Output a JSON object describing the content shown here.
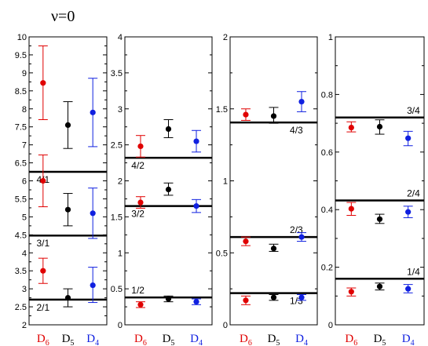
{
  "title": "ν=0",
  "colors": {
    "D6": "#e00000",
    "D5": "#000000",
    "D4": "#1020e0"
  },
  "chart_data": [
    {
      "type": "scatter",
      "ylim": [
        2,
        10
      ],
      "yticks": [
        "2",
        "2.5",
        "3",
        "3.5",
        "4",
        "4.5",
        "5",
        "5.5",
        "6",
        "6.5",
        "7",
        "7.5",
        "8",
        "8.5",
        "9",
        "9.5",
        "10"
      ],
      "categories": [
        {
          "main": "D",
          "sub": "6",
          "color": "D6"
        },
        {
          "main": "D",
          "sub": "5",
          "color": "D5"
        },
        {
          "main": "D",
          "sub": "4",
          "color": "D4"
        }
      ],
      "hlines": [
        {
          "y": 6.25,
          "label": "4/1",
          "labelX": 0.18,
          "labelSide": "below"
        },
        {
          "y": 4.48,
          "label": "3/1",
          "labelX": 0.18,
          "labelSide": "below"
        },
        {
          "y": 2.7,
          "label": "2/1",
          "labelX": 0.18,
          "labelSide": "below"
        }
      ],
      "series": [
        {
          "color": "D6",
          "points": [
            {
              "y": 8.72,
              "lo": 7.7,
              "hi": 9.75
            },
            {
              "y": 6.0,
              "lo": 5.28,
              "hi": 6.72
            },
            {
              "y": 3.5,
              "lo": 3.15,
              "hi": 3.85
            }
          ]
        },
        {
          "color": "D5",
          "points": [
            {
              "y": 7.55,
              "lo": 6.9,
              "hi": 8.2
            },
            {
              "y": 5.2,
              "lo": 4.75,
              "hi": 5.65
            },
            {
              "y": 2.75,
              "lo": 2.5,
              "hi": 3.0
            }
          ]
        },
        {
          "color": "D4",
          "points": [
            {
              "y": 7.9,
              "lo": 6.95,
              "hi": 8.85
            },
            {
              "y": 5.1,
              "lo": 4.4,
              "hi": 5.8
            },
            {
              "y": 3.1,
              "lo": 2.62,
              "hi": 3.6
            }
          ]
        }
      ]
    },
    {
      "type": "scatter",
      "ylim": [
        0,
        4
      ],
      "yticks": [
        "0",
        "0.5",
        "1",
        "1.5",
        "2",
        "2.5",
        "3",
        "3.5",
        "4"
      ],
      "categories": [
        {
          "main": "D",
          "sub": "6",
          "color": "D6"
        },
        {
          "main": "D",
          "sub": "5",
          "color": "D5"
        },
        {
          "main": "D",
          "sub": "4",
          "color": "D4"
        }
      ],
      "hlines": [
        {
          "y": 2.32,
          "label": "4/2",
          "labelX": 0.15,
          "labelSide": "below"
        },
        {
          "y": 1.65,
          "label": "3/2",
          "labelX": 0.15,
          "labelSide": "below"
        },
        {
          "y": 0.38,
          "label": "1/2",
          "labelX": 0.15,
          "labelSide": "above"
        }
      ],
      "series": [
        {
          "color": "D6",
          "points": [
            {
              "y": 2.48,
              "lo": 2.33,
              "hi": 2.63
            },
            {
              "y": 1.7,
              "lo": 1.62,
              "hi": 1.78
            },
            {
              "y": 0.28,
              "lo": 0.24,
              "hi": 0.32
            }
          ]
        },
        {
          "color": "D5",
          "points": [
            {
              "y": 2.72,
              "lo": 2.6,
              "hi": 2.85
            },
            {
              "y": 1.88,
              "lo": 1.8,
              "hi": 1.97
            },
            {
              "y": 0.36,
              "lo": 0.32,
              "hi": 0.4
            }
          ]
        },
        {
          "color": "D4",
          "points": [
            {
              "y": 2.55,
              "lo": 2.4,
              "hi": 2.7
            },
            {
              "y": 1.65,
              "lo": 1.56,
              "hi": 1.74
            },
            {
              "y": 0.32,
              "lo": 0.28,
              "hi": 0.36
            }
          ]
        }
      ]
    },
    {
      "type": "scatter",
      "ylim": [
        0,
        2
      ],
      "yticks": [
        "0",
        "0.5",
        "1",
        "1.5",
        "2"
      ],
      "categories": [
        {
          "main": "D",
          "sub": "6",
          "color": "D6"
        },
        {
          "main": "D",
          "sub": "5",
          "color": "D5"
        },
        {
          "main": "D",
          "sub": "4",
          "color": "D4"
        }
      ],
      "hlines": [
        {
          "y": 1.405,
          "label": "4/3",
          "labelX": 0.76,
          "labelSide": "below"
        },
        {
          "y": 0.61,
          "label": "2/3",
          "labelX": 0.76,
          "labelSide": "above"
        },
        {
          "y": 0.22,
          "label": "1/3",
          "labelX": 0.76,
          "labelSide": "below"
        }
      ],
      "series": [
        {
          "color": "D6",
          "points": [
            {
              "y": 1.46,
              "lo": 1.42,
              "hi": 1.5
            },
            {
              "y": 0.58,
              "lo": 0.55,
              "hi": 0.61
            },
            {
              "y": 0.17,
              "lo": 0.14,
              "hi": 0.2
            }
          ]
        },
        {
          "color": "D5",
          "points": [
            {
              "y": 1.45,
              "lo": 1.4,
              "hi": 1.51
            },
            {
              "y": 0.53,
              "lo": 0.51,
              "hi": 0.56
            },
            {
              "y": 0.19,
              "lo": 0.17,
              "hi": 0.21
            }
          ]
        },
        {
          "color": "D4",
          "points": [
            {
              "y": 1.55,
              "lo": 1.48,
              "hi": 1.62
            },
            {
              "y": 0.61,
              "lo": 0.58,
              "hi": 0.64
            },
            {
              "y": 0.19,
              "lo": 0.17,
              "hi": 0.21
            }
          ]
        }
      ]
    },
    {
      "type": "scatter",
      "ylim": [
        0,
        1
      ],
      "yticks": [
        "0",
        "0.2",
        "0.4",
        "0.6",
        "0.8",
        "1"
      ],
      "categories": [
        {
          "main": "D",
          "sub": "6",
          "color": "D6"
        },
        {
          "main": "D",
          "sub": "5",
          "color": "D5"
        },
        {
          "main": "D",
          "sub": "4",
          "color": "D4"
        }
      ],
      "hlines": [
        {
          "y": 0.72,
          "label": "3/4",
          "labelX": 0.88,
          "labelSide": "above"
        },
        {
          "y": 0.432,
          "label": "2/4",
          "labelX": 0.88,
          "labelSide": "above"
        },
        {
          "y": 0.16,
          "label": "1/4",
          "labelX": 0.88,
          "labelSide": "above"
        }
      ],
      "series": [
        {
          "color": "D6",
          "points": [
            {
              "y": 0.685,
              "lo": 0.67,
              "hi": 0.705
            },
            {
              "y": 0.403,
              "lo": 0.38,
              "hi": 0.425
            },
            {
              "y": 0.115,
              "lo": 0.1,
              "hi": 0.128
            }
          ]
        },
        {
          "color": "D5",
          "points": [
            {
              "y": 0.688,
              "lo": 0.662,
              "hi": 0.712
            },
            {
              "y": 0.367,
              "lo": 0.352,
              "hi": 0.384
            },
            {
              "y": 0.133,
              "lo": 0.121,
              "hi": 0.145
            }
          ]
        },
        {
          "color": "D4",
          "points": [
            {
              "y": 0.648,
              "lo": 0.622,
              "hi": 0.672
            },
            {
              "y": 0.392,
              "lo": 0.372,
              "hi": 0.412
            },
            {
              "y": 0.125,
              "lo": 0.111,
              "hi": 0.14
            }
          ]
        }
      ]
    }
  ]
}
